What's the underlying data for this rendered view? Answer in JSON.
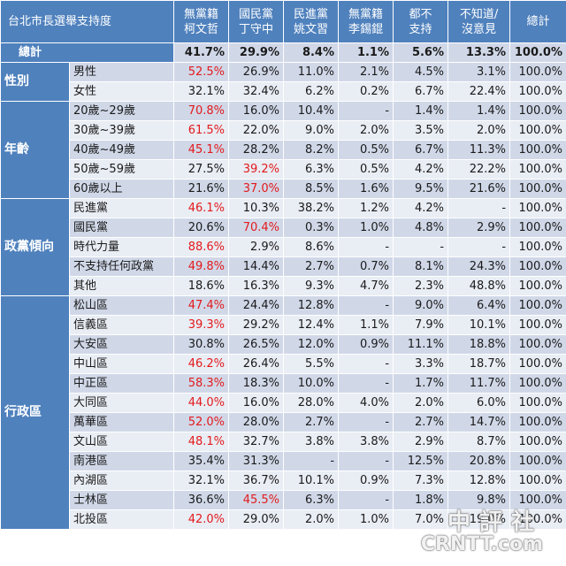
{
  "table": {
    "corner_title": "台北市長選舉支持度",
    "columns": [
      "無黨籍\n柯文哲",
      "國民黨\n丁守中",
      "民進黨\n姚文習",
      "無黨籍\n李錫錕",
      "都不\n支持",
      "不知道/\n沒意見",
      "總計"
    ],
    "total_row": {
      "label": "總計",
      "values": [
        "41.7%",
        "29.9%",
        "8.4%",
        "1.1%",
        "5.6%",
        "13.3%",
        "100.0%"
      ]
    },
    "groups": [
      {
        "label": "性別",
        "rows": [
          {
            "label": "男性",
            "values": [
              "52.5%",
              "26.9%",
              "11.0%",
              "2.1%",
              "4.5%",
              "3.1%",
              "100.0%"
            ],
            "highlight": [
              0
            ]
          },
          {
            "label": "女性",
            "values": [
              "32.1%",
              "32.4%",
              "6.2%",
              "0.2%",
              "6.7%",
              "22.4%",
              "100.0%"
            ],
            "highlight": []
          }
        ]
      },
      {
        "label": "年齡",
        "rows": [
          {
            "label": "20歲~29歲",
            "values": [
              "70.8%",
              "16.0%",
              "10.4%",
              "-",
              "1.4%",
              "1.4%",
              "100.0%"
            ],
            "highlight": [
              0
            ]
          },
          {
            "label": "30歲~39歲",
            "values": [
              "61.5%",
              "22.0%",
              "9.0%",
              "2.0%",
              "3.5%",
              "2.0%",
              "100.0%"
            ],
            "highlight": [
              0
            ]
          },
          {
            "label": "40歲~49歲",
            "values": [
              "45.1%",
              "28.2%",
              "8.2%",
              "0.5%",
              "6.7%",
              "11.3%",
              "100.0%"
            ],
            "highlight": [
              0
            ]
          },
          {
            "label": "50歲~59歲",
            "values": [
              "27.5%",
              "39.2%",
              "6.3%",
              "0.5%",
              "4.2%",
              "22.2%",
              "100.0%"
            ],
            "highlight": [
              1
            ]
          },
          {
            "label": "60歲以上",
            "values": [
              "21.6%",
              "37.0%",
              "8.5%",
              "1.6%",
              "9.5%",
              "21.6%",
              "100.0%"
            ],
            "highlight": [
              1
            ]
          }
        ]
      },
      {
        "label": "政黨傾向",
        "rows": [
          {
            "label": "民進黨",
            "values": [
              "46.1%",
              "10.3%",
              "38.2%",
              "1.2%",
              "4.2%",
              "-",
              "100.0%"
            ],
            "highlight": [
              0
            ]
          },
          {
            "label": "國民黨",
            "values": [
              "20.6%",
              "70.4%",
              "0.3%",
              "1.0%",
              "4.8%",
              "2.9%",
              "100.0%"
            ],
            "highlight": [
              1
            ]
          },
          {
            "label": "時代力量",
            "values": [
              "88.6%",
              "2.9%",
              "8.6%",
              "-",
              "-",
              "-",
              "100.0%"
            ],
            "highlight": [
              0
            ]
          },
          {
            "label": "不支持任何政黨",
            "values": [
              "49.8%",
              "14.4%",
              "2.7%",
              "0.7%",
              "8.1%",
              "24.3%",
              "100.0%"
            ],
            "highlight": [
              0
            ]
          },
          {
            "label": "其他",
            "values": [
              "18.6%",
              "16.3%",
              "9.3%",
              "4.7%",
              "2.3%",
              "48.8%",
              "100.0%"
            ],
            "highlight": []
          }
        ]
      },
      {
        "label": "行政區",
        "rows": [
          {
            "label": "松山區",
            "values": [
              "47.4%",
              "24.4%",
              "12.8%",
              "-",
              "9.0%",
              "6.4%",
              "100.0%"
            ],
            "highlight": [
              0
            ]
          },
          {
            "label": "信義區",
            "values": [
              "39.3%",
              "29.2%",
              "12.4%",
              "1.1%",
              "7.9%",
              "10.1%",
              "100.0%"
            ],
            "highlight": [
              0
            ]
          },
          {
            "label": "大安區",
            "values": [
              "30.8%",
              "26.5%",
              "12.0%",
              "0.9%",
              "11.1%",
              "18.8%",
              "100.0%"
            ],
            "highlight": []
          },
          {
            "label": "中山區",
            "values": [
              "46.2%",
              "26.4%",
              "5.5%",
              "-",
              "3.3%",
              "18.7%",
              "100.0%"
            ],
            "highlight": [
              0
            ]
          },
          {
            "label": "中正區",
            "values": [
              "58.3%",
              "18.3%",
              "10.0%",
              "-",
              "1.7%",
              "11.7%",
              "100.0%"
            ],
            "highlight": [
              0
            ]
          },
          {
            "label": "大同區",
            "values": [
              "44.0%",
              "16.0%",
              "28.0%",
              "4.0%",
              "2.0%",
              "6.0%",
              "100.0%"
            ],
            "highlight": [
              0
            ]
          },
          {
            "label": "萬華區",
            "values": [
              "52.0%",
              "28.0%",
              "2.7%",
              "-",
              "2.7%",
              "14.7%",
              "100.0%"
            ],
            "highlight": [
              0
            ]
          },
          {
            "label": "文山區",
            "values": [
              "48.1%",
              "32.7%",
              "3.8%",
              "3.8%",
              "2.9%",
              "8.7%",
              "100.0%"
            ],
            "highlight": [
              0
            ]
          },
          {
            "label": "南港區",
            "values": [
              "35.4%",
              "31.3%",
              "-",
              "-",
              "12.5%",
              "20.8%",
              "100.0%"
            ],
            "highlight": []
          },
          {
            "label": "內湖區",
            "values": [
              "32.1%",
              "36.7%",
              "10.1%",
              "0.9%",
              "7.3%",
              "12.8%",
              "100.0%"
            ],
            "highlight": []
          },
          {
            "label": "士林區",
            "values": [
              "36.6%",
              "45.5%",
              "6.3%",
              "-",
              "1.8%",
              "9.8%",
              "100.0%"
            ],
            "highlight": [
              1
            ]
          },
          {
            "label": "北投區",
            "values": [
              "42.0%",
              "29.0%",
              "2.0%",
              "1.0%",
              "7.0%",
              "19.0%",
              "100.0%"
            ],
            "highlight": [
              0
            ]
          }
        ]
      }
    ]
  },
  "watermark": {
    "cn": "中評社",
    "en": "CRNTT.com"
  },
  "colors": {
    "header_blue": "#4f81bd",
    "band_dark": "#d0d8e8",
    "band_light": "#e9edf4",
    "highlight_red": "#e31a1c"
  }
}
